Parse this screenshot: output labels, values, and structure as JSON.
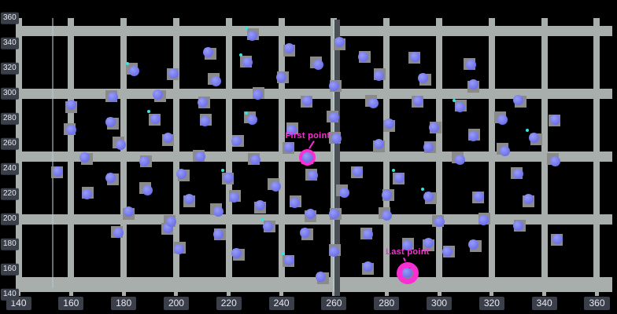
{
  "chart_data": {
    "type": "scatter",
    "title": "",
    "xlabel": "",
    "ylabel": "",
    "xlim": [
      140,
      360
    ],
    "ylim": [
      140,
      360
    ],
    "grid": "on",
    "x_ticks": [
      140,
      160,
      180,
      200,
      220,
      240,
      260,
      280,
      300,
      320,
      340,
      360
    ],
    "y_ticks": [
      140,
      160,
      180,
      200,
      220,
      240,
      260,
      280,
      300,
      320,
      340,
      360
    ],
    "x_tick_labels": [
      "140",
      "160",
      "180",
      "200",
      "220",
      "240",
      "260",
      "280",
      "300",
      "320",
      "340",
      "360"
    ],
    "y_tick_labels": [
      "140",
      "160",
      "180",
      "200",
      "220",
      "240",
      "260",
      "280",
      "300",
      "320",
      "340",
      "360"
    ],
    "grid_lines": {
      "horizontal_y": [
        150,
        200,
        250,
        300,
        350
      ],
      "vertical_x": [
        140,
        160,
        180,
        200,
        220,
        240,
        260,
        280,
        300,
        320,
        340,
        360
      ]
    },
    "vline_dark_x": 260,
    "vline_thin_x": 153,
    "points": [
      [
        184,
        318
      ],
      [
        199,
        316
      ],
      [
        229,
        346
      ],
      [
        212,
        333
      ],
      [
        227,
        325
      ],
      [
        243,
        336
      ],
      [
        240,
        313
      ],
      [
        215,
        310
      ],
      [
        250,
        294
      ],
      [
        231,
        299
      ],
      [
        193,
        299
      ],
      [
        176,
        297
      ],
      [
        160,
        291
      ],
      [
        210,
        293
      ],
      [
        229,
        279
      ],
      [
        192,
        280
      ],
      [
        211,
        278
      ],
      [
        175,
        277
      ],
      [
        160,
        271
      ],
      [
        197,
        265
      ],
      [
        223,
        262
      ],
      [
        179,
        259
      ],
      [
        243,
        257
      ],
      [
        244,
        271
      ],
      [
        165,
        249
      ],
      [
        209,
        250
      ],
      [
        262,
        341
      ],
      [
        271,
        329
      ],
      [
        254,
        323
      ],
      [
        291,
        329
      ],
      [
        277,
        314
      ],
      [
        294,
        312
      ],
      [
        312,
        323
      ],
      [
        313,
        307
      ],
      [
        260,
        306
      ],
      [
        275,
        292
      ],
      [
        292,
        294
      ],
      [
        308,
        289
      ],
      [
        330,
        295
      ],
      [
        260,
        281
      ],
      [
        281,
        276
      ],
      [
        298,
        273
      ],
      [
        324,
        279
      ],
      [
        344,
        279
      ],
      [
        313,
        266
      ],
      [
        336,
        265
      ],
      [
        261,
        264
      ],
      [
        277,
        260
      ],
      [
        296,
        257
      ],
      [
        325,
        254
      ],
      [
        155,
        238
      ],
      [
        166,
        220
      ],
      [
        175,
        233
      ],
      [
        178,
        189
      ],
      [
        182,
        206
      ],
      [
        188,
        246
      ],
      [
        189,
        223
      ],
      [
        197,
        193
      ],
      [
        201,
        176
      ],
      [
        202,
        236
      ],
      [
        198,
        198
      ],
      [
        205,
        216
      ],
      [
        216,
        188
      ],
      [
        216,
        206
      ],
      [
        220,
        233
      ],
      [
        222,
        217
      ],
      [
        223,
        173
      ],
      [
        230,
        247
      ],
      [
        232,
        211
      ],
      [
        235,
        194
      ],
      [
        238,
        226
      ],
      [
        243,
        167
      ],
      [
        245,
        213
      ],
      [
        249,
        189
      ],
      [
        252,
        235
      ],
      [
        251,
        204
      ],
      [
        260,
        204
      ],
      [
        264,
        221
      ],
      [
        269,
        238
      ],
      [
        260,
        174
      ],
      [
        255,
        154
      ],
      [
        273,
        188
      ],
      [
        273,
        162
      ],
      [
        280,
        219
      ],
      [
        280,
        203
      ],
      [
        285,
        233
      ],
      [
        288,
        179
      ],
      [
        296,
        218
      ],
      [
        300,
        198
      ],
      [
        296,
        181
      ],
      [
        303,
        174
      ],
      [
        308,
        247
      ],
      [
        315,
        218
      ],
      [
        317,
        199
      ],
      [
        313,
        180
      ],
      [
        330,
        236
      ],
      [
        334,
        216
      ],
      [
        330,
        195
      ],
      [
        344,
        246
      ],
      [
        345,
        184
      ]
    ],
    "cyan_point_indices": [
      0,
      2,
      4,
      14,
      15,
      37,
      45,
      64,
      69,
      71,
      85,
      87
    ],
    "annotations": [
      {
        "label": "First point",
        "x": 250,
        "y": 249,
        "label_x": 250,
        "label_y": 266.5
      },
      {
        "label": "Last point",
        "x": 288,
        "y": 157,
        "label_x": 288,
        "label_y": 173.5
      }
    ],
    "colors": {
      "background": "#000000",
      "grid": "#a7aeab",
      "marker_blue": "#7579ef",
      "marker_square_gray": "#8a8a8a",
      "cyan_speck": "#35e4de",
      "annotation_magenta": "#f92ed3",
      "dark_vline": "#4b5056",
      "tick_label_bg": "#3a3f49",
      "tick_label_text": "#e7eaee"
    }
  }
}
